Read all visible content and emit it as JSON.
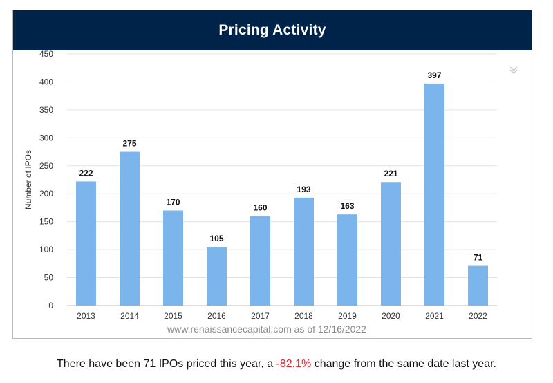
{
  "header": {
    "title": "Pricing Activity"
  },
  "menu_icon": "double-chevron-down-icon",
  "source_note": "www.renaissancecapital.com as of 12/16/2022",
  "summary": {
    "prefix": "There have been 71 IPOs priced this year, a ",
    "change": "-82.1%",
    "suffix": " change from the same date last year."
  },
  "colors": {
    "bar": "#7cb5ec",
    "header_bg": "#002349",
    "negative": "#e8232a"
  },
  "chart_data": {
    "type": "bar",
    "title": "Pricing Activity",
    "xlabel": "",
    "ylabel": "Number of IPOs",
    "categories": [
      "2013",
      "2014",
      "2015",
      "2016",
      "2017",
      "2018",
      "2019",
      "2020",
      "2021",
      "2022"
    ],
    "values": [
      222,
      275,
      170,
      105,
      160,
      193,
      163,
      221,
      397,
      71
    ],
    "ylim": [
      0,
      450
    ],
    "yticks": [
      0,
      50,
      100,
      150,
      200,
      250,
      300,
      350,
      400,
      450
    ],
    "grid": true,
    "legend": "none"
  }
}
